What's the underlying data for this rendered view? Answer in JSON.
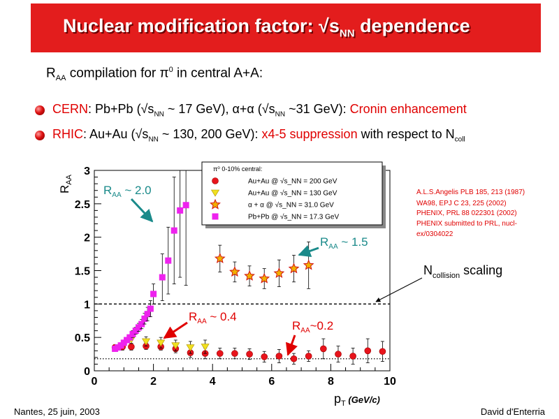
{
  "title": {
    "prefix": "Nuclear modification factor: √s",
    "sub": "NN",
    "suffix": " dependence"
  },
  "subtitle": {
    "pre": "R",
    "sub": "AA",
    "mid": " compilation for ",
    "pi": "π",
    "sup": "0",
    "post": "  in central A+A:"
  },
  "bullets": [
    {
      "lab": "CERN",
      "t1": ": Pb+Pb (√s",
      "s1": "NN",
      "t2": " ~ 17 GeV), ",
      "alpha": "α+α",
      "t3": " (√s",
      "s2": "NN",
      "t4": " ~31 GeV): ",
      "hl": "Cronin enhancement"
    },
    {
      "lab": "RHIC",
      "t1": ": Au+Au (√s",
      "s1": "NN",
      "t2": " ~ 130, 200 GeV): ",
      "hl": "x4-5 suppression",
      "t3": " with respect to N",
      "s2": "coll"
    }
  ],
  "chart_data": {
    "type": "scatter",
    "xlabel": "p",
    "xlabel_sub": "T",
    "xlabel_unit": " (GeV/c)",
    "ylabel": "R",
    "ylabel_sub": "AA",
    "xlim": [
      0,
      10
    ],
    "ylim": [
      0,
      3
    ],
    "xticks": [
      "0",
      "2",
      "4",
      "6",
      "8",
      "10"
    ],
    "yticks": [
      "0",
      "0.5",
      "1",
      "1.5",
      "2",
      "2.5",
      "3"
    ],
    "reference_lines": [
      {
        "y": 1,
        "style": "dashed"
      },
      {
        "y": 0.18,
        "style": "dotted"
      }
    ],
    "legend": {
      "header": "π⁰ 0-10% central:",
      "placement": "top-right"
    },
    "series": [
      {
        "name": "Au+Au @ √s_NN = 200 GeV",
        "marker": "circle",
        "color": "#e8141c",
        "points": [
          [
            0.7,
            0.35
          ],
          [
            0.95,
            0.36
          ],
          [
            1.25,
            0.36
          ],
          [
            1.75,
            0.37
          ],
          [
            2.25,
            0.36
          ],
          [
            2.75,
            0.33
          ],
          [
            3.25,
            0.27
          ],
          [
            3.75,
            0.26
          ],
          [
            4.25,
            0.26
          ],
          [
            4.75,
            0.26
          ],
          [
            5.25,
            0.25
          ],
          [
            5.75,
            0.21
          ],
          [
            6.25,
            0.22
          ],
          [
            6.75,
            0.18
          ],
          [
            7.25,
            0.22
          ],
          [
            7.75,
            0.33
          ],
          [
            8.25,
            0.25
          ],
          [
            8.75,
            0.22
          ],
          [
            9.25,
            0.3
          ],
          [
            9.75,
            0.29
          ]
        ],
        "errors": [
          0.04,
          0.05,
          0.05,
          0.05,
          0.05,
          0.06,
          0.07,
          0.08,
          0.08,
          0.08,
          0.08,
          0.08,
          0.1,
          0.08,
          0.08,
          0.15,
          0.12,
          0.12,
          0.18,
          0.15
        ]
      },
      {
        "name": "Au+Au @ √s_NN = 130 GeV",
        "marker": "triangle-down",
        "color": "#f0e020",
        "points": [
          [
            1.25,
            0.47
          ],
          [
            1.75,
            0.44
          ],
          [
            2.25,
            0.42
          ],
          [
            2.75,
            0.38
          ],
          [
            3.25,
            0.35
          ],
          [
            3.75,
            0.36
          ]
        ],
        "errors": [
          0.06,
          0.07,
          0.08,
          0.08,
          0.09,
          0.1
        ]
      },
      {
        "name": "α + α @ √s_NN = 31.0 GeV",
        "marker": "star",
        "color": "#f0b000",
        "points": [
          [
            4.25,
            1.68
          ],
          [
            4.75,
            1.48
          ],
          [
            5.25,
            1.42
          ],
          [
            5.75,
            1.38
          ],
          [
            6.25,
            1.46
          ],
          [
            6.75,
            1.53
          ],
          [
            7.25,
            1.58
          ]
        ],
        "errors": [
          0.2,
          0.15,
          0.15,
          0.15,
          0.2,
          0.2,
          0.35
        ]
      },
      {
        "name": "Pb+Pb @ √s_NN = 17.3 GeV",
        "marker": "square",
        "color": "#ee22ee",
        "points": [
          [
            0.7,
            0.33
          ],
          [
            0.8,
            0.35
          ],
          [
            0.9,
            0.38
          ],
          [
            1.0,
            0.42
          ],
          [
            1.1,
            0.46
          ],
          [
            1.2,
            0.5
          ],
          [
            1.3,
            0.55
          ],
          [
            1.4,
            0.6
          ],
          [
            1.5,
            0.65
          ],
          [
            1.6,
            0.7
          ],
          [
            1.7,
            0.78
          ],
          [
            1.8,
            0.85
          ],
          [
            1.9,
            0.93
          ],
          [
            2.0,
            1.15
          ],
          [
            2.3,
            1.4
          ],
          [
            2.5,
            1.65
          ],
          [
            2.7,
            2.1
          ],
          [
            2.9,
            2.4
          ],
          [
            3.1,
            2.48
          ]
        ],
        "errors": [
          0.03,
          0.03,
          0.03,
          0.03,
          0.04,
          0.04,
          0.05,
          0.05,
          0.06,
          0.07,
          0.08,
          0.1,
          0.12,
          0.15,
          0.35,
          0.5,
          0.8,
          1.0,
          1.2
        ]
      }
    ]
  },
  "annotations": [
    {
      "pre": "R",
      "sub": "AA",
      "post": " ~  2.0"
    },
    {
      "pre": "R",
      "sub": "AA",
      "post": " ~  1.5"
    },
    {
      "pre": "R",
      "sub": "AA",
      "post": " ~  0.4"
    },
    {
      "pre": "R",
      "sub": "AA",
      "post": "~0.2"
    }
  ],
  "ncoll": {
    "pre": "N",
    "sub": "collision",
    "post": "  scaling"
  },
  "references": [
    "A.L.S.Angelis PLB 185, 213 (1987)",
    "WA98, EPJ C 23, 225 (2002)",
    "PHENIX, PRL 88 022301 (2002)",
    "PHENIX submitted to PRL, nucl-",
    "ex/0304022"
  ],
  "footer": {
    "left": "Nantes, 25 juin, 2003",
    "right": "David d'Enterria"
  },
  "colors": {
    "title_bg": "#e31d1d",
    "highlight": "#e00000",
    "annotation": "#1a8a8a",
    "reference": "#e00000"
  }
}
